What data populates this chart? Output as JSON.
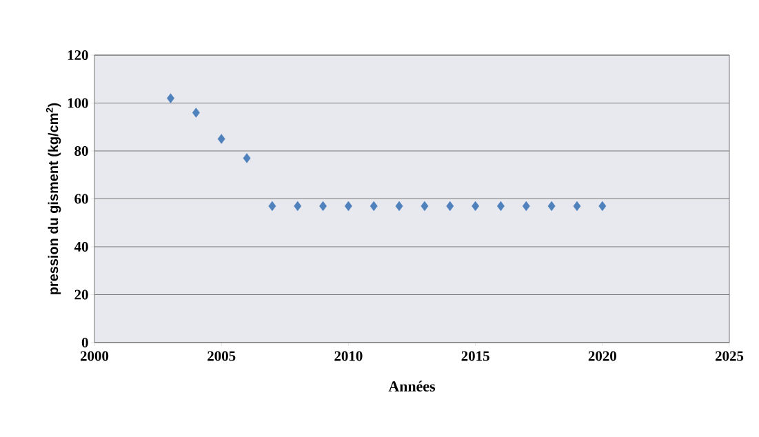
{
  "chart_data": {
    "type": "scatter",
    "xlabel": "Années",
    "ylabel": "pression du gisment (kg/cm$^{2}$)",
    "x": [
      2003,
      2004,
      2005,
      2006,
      2007,
      2008,
      2009,
      2010,
      2011,
      2012,
      2013,
      2014,
      2015,
      2016,
      2017,
      2018,
      2019,
      2020
    ],
    "values": [
      102,
      96,
      85,
      77,
      57,
      57,
      57,
      57,
      57,
      57,
      57,
      57,
      57,
      57,
      57,
      57,
      57,
      57
    ],
    "color": "#4f81bd",
    "marker": "diamond",
    "xlim": [
      2000,
      2025
    ],
    "xticks": [
      2000,
      2005,
      2010,
      2015,
      2020,
      2025
    ],
    "ylim": [
      0,
      120
    ],
    "yticks": [
      0,
      20,
      40,
      60,
      80,
      100,
      120
    ],
    "grid": "y"
  }
}
